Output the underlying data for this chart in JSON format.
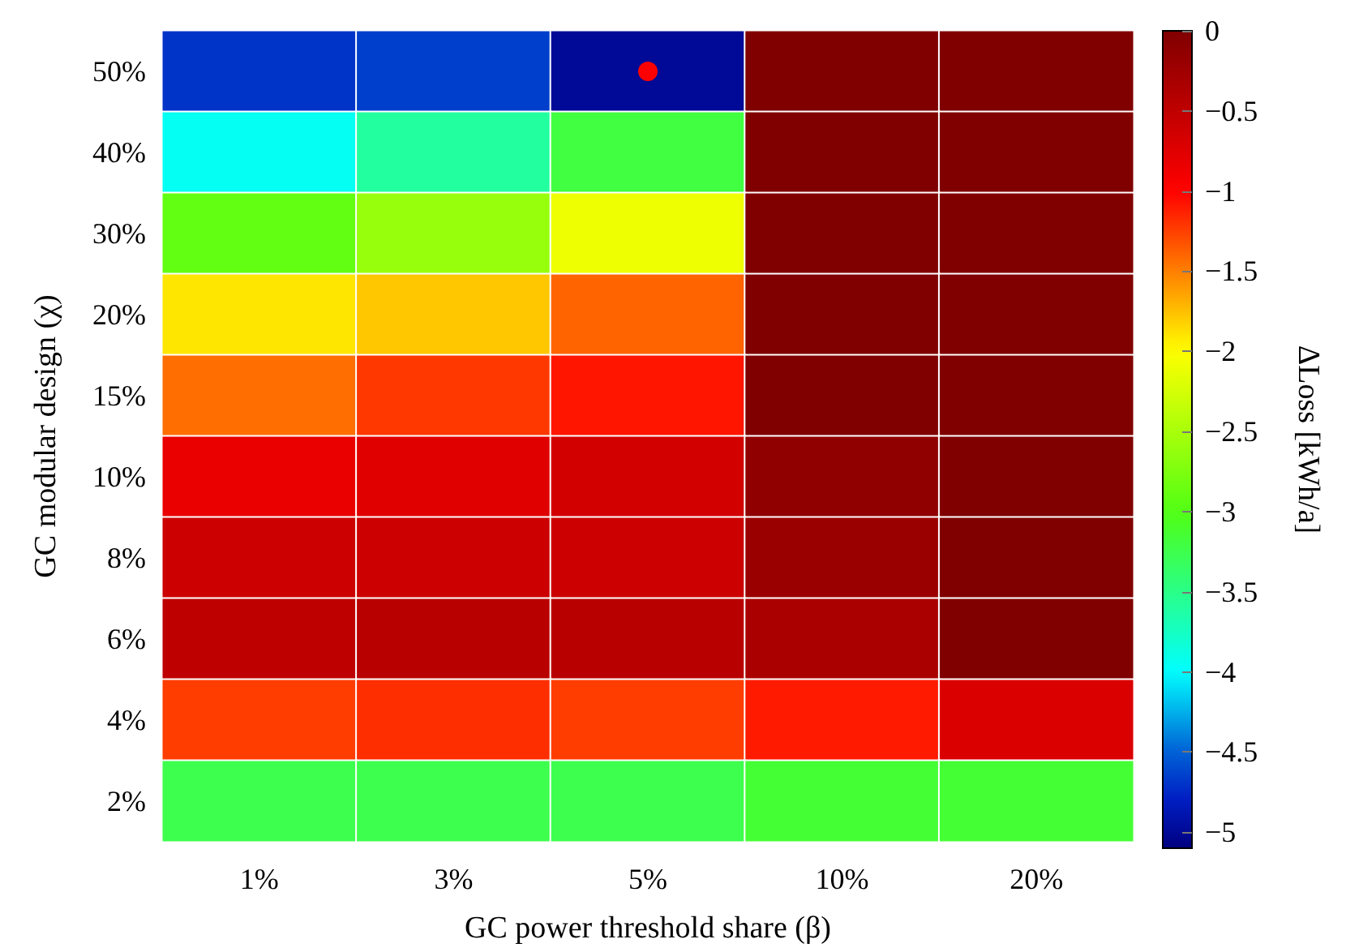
{
  "chart_data": {
    "type": "heatmap",
    "xlabel": "GC power threshold share (β)",
    "ylabel": "GC modular design (χ)",
    "clabel": "ΔLoss [kWh/a]",
    "categories": [
      "1%",
      "3%",
      "5%",
      "10%",
      "20%"
    ],
    "y_categories": [
      "50%",
      "40%",
      "30%",
      "20%",
      "15%",
      "10%",
      "8%",
      "6%",
      "4%",
      "2%"
    ],
    "cells": [
      [
        -4.7,
        -4.65,
        -5.0,
        0,
        0
      ],
      [
        -3.95,
        -3.6,
        -3.2,
        0,
        0
      ],
      [
        -2.9,
        -2.6,
        -2.1,
        0,
        0
      ],
      [
        -1.9,
        -1.78,
        -1.39,
        0,
        0
      ],
      [
        -1.43,
        -1.22,
        -1.08,
        0,
        0
      ],
      [
        -0.84,
        -0.76,
        -0.65,
        -0.13,
        0
      ],
      [
        -0.6,
        -0.6,
        -0.6,
        -0.21,
        0
      ],
      [
        -0.49,
        -0.45,
        -0.45,
        -0.33,
        0
      ],
      [
        -1.24,
        -1.18,
        -1.24,
        -1.1,
        -0.72
      ],
      [
        -3.25,
        -3.25,
        -3.25,
        -3.15,
        -3.15
      ]
    ],
    "clim": [
      -5.1,
      0
    ],
    "cticks": [
      {
        "value": -5,
        "label": "−5"
      },
      {
        "value": -4.5,
        "label": "−4.5"
      },
      {
        "value": -4,
        "label": "−4"
      },
      {
        "value": -3.5,
        "label": "−3.5"
      },
      {
        "value": -3,
        "label": "−3"
      },
      {
        "value": -2.5,
        "label": "−2.5"
      },
      {
        "value": -2,
        "label": "−2"
      },
      {
        "value": -1.5,
        "label": "−1.5"
      },
      {
        "value": -1,
        "label": "−1"
      },
      {
        "value": -0.5,
        "label": "−0.5"
      },
      0
    ]
  }
}
